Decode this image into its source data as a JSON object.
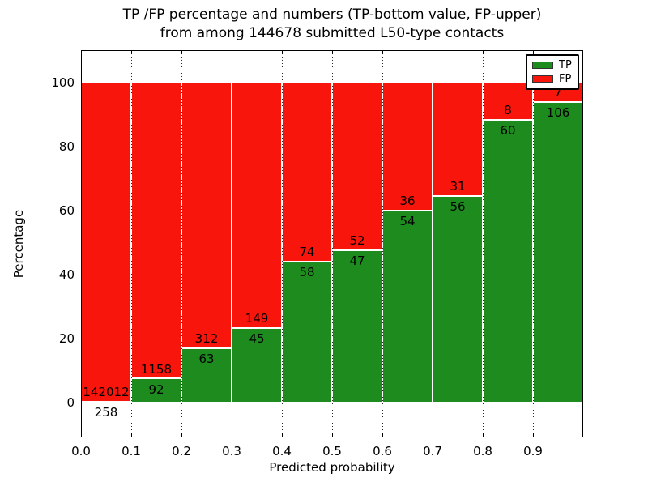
{
  "chart_data": {
    "type": "bar",
    "stacked": true,
    "normalized": "percent",
    "title_line1": "TP /FP percentage and numbers (TP-bottom value, FP-upper)",
    "title_line2": "from among 144678 submitted L50-type contacts",
    "title": "TP /FP percentage and numbers (TP-bottom value, FP-upper) from among 144678 submitted L50-type contacts",
    "xlabel": "Predicted probability",
    "ylabel": "Percentage",
    "xlim": [
      0.0,
      1.0
    ],
    "ylim": [
      -11,
      110
    ],
    "grid": true,
    "xticks": [
      0.0,
      0.1,
      0.2,
      0.3,
      0.4,
      0.5,
      0.6,
      0.7,
      0.8,
      0.9
    ],
    "xtick_labels": [
      "0.0",
      "0.1",
      "0.2",
      "0.3",
      "0.4",
      "0.5",
      "0.6",
      "0.7",
      "0.8",
      "0.9"
    ],
    "yticks": [
      0,
      20,
      40,
      60,
      80,
      100
    ],
    "ytick_labels": [
      "0",
      "20",
      "40",
      "60",
      "80",
      "100"
    ],
    "legend": {
      "position": "upper-right",
      "entries": [
        {
          "label": "TP",
          "color": "#1E8B1E"
        },
        {
          "label": "FP",
          "color": "#F8150C"
        }
      ]
    },
    "bins": [
      {
        "x0": 0.0,
        "x1": 0.1,
        "tp": 258,
        "fp": 142012
      },
      {
        "x0": 0.1,
        "x1": 0.2,
        "tp": 92,
        "fp": 1158
      },
      {
        "x0": 0.2,
        "x1": 0.3,
        "tp": 63,
        "fp": 312
      },
      {
        "x0": 0.3,
        "x1": 0.4,
        "tp": 45,
        "fp": 149
      },
      {
        "x0": 0.4,
        "x1": 0.5,
        "tp": 58,
        "fp": 74
      },
      {
        "x0": 0.5,
        "x1": 0.6,
        "tp": 47,
        "fp": 52
      },
      {
        "x0": 0.6,
        "x1": 0.7,
        "tp": 54,
        "fp": 36
      },
      {
        "x0": 0.7,
        "x1": 0.8,
        "tp": 56,
        "fp": 31
      },
      {
        "x0": 0.8,
        "x1": 0.9,
        "tp": 60,
        "fp": 8
      },
      {
        "x0": 0.9,
        "x1": 1.0,
        "tp": 106,
        "fp": 7
      }
    ]
  },
  "colors": {
    "tp": "#1E8B1E",
    "fp": "#F8150C",
    "grid": "#000000",
    "text": "#000000",
    "background": "#FFFFFF"
  }
}
